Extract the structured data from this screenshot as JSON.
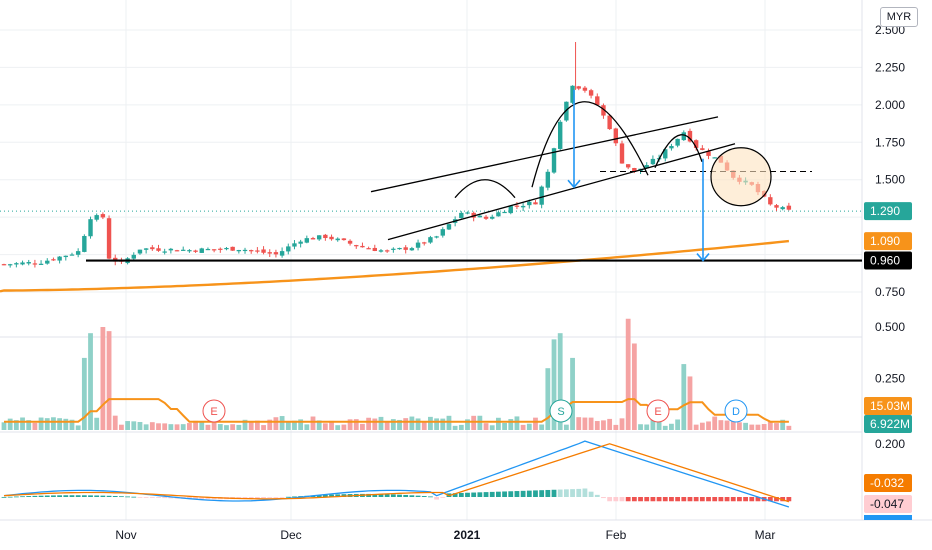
{
  "currency": "MYR",
  "colors": {
    "up": "#26a69a",
    "down": "#ef5350",
    "ma": "#f7931a",
    "macd": "#2196f3",
    "signal": "#f57c00",
    "drawing": "#000000",
    "arrow": "#2196f3"
  },
  "chart_data": {
    "type": "candlestick",
    "price_axis": {
      "ticks": [
        "2.500",
        "2.250",
        "2.000",
        "1.750",
        "1.500",
        "0.750"
      ],
      "tick_values": [
        2.5,
        2.25,
        2.0,
        1.75,
        1.5,
        0.75
      ]
    },
    "volume_axis": {
      "ticks": [
        "0.500",
        "0.250"
      ],
      "tick_values": [
        0.5,
        0.25
      ]
    },
    "macd_axis": {
      "ticks": [
        "0.200"
      ],
      "tick_values": [
        0.2
      ]
    },
    "x_ticks": [
      {
        "label": "Nov",
        "strong": false
      },
      {
        "label": "Dec",
        "strong": false
      },
      {
        "label": "2021",
        "strong": true
      },
      {
        "label": "Feb",
        "strong": false
      },
      {
        "label": "Mar",
        "strong": false
      }
    ],
    "price_tags": [
      {
        "label": "1.290",
        "value": 1.29,
        "color": "#26a69a"
      },
      {
        "label": "1.090",
        "value": 1.09,
        "color": "#f7931a"
      },
      {
        "label": "0.960",
        "value": 0.96,
        "color": "#000000"
      }
    ],
    "volume_tags": [
      {
        "label": "15.03M",
        "color": "#f7931a"
      },
      {
        "label": "6.922M",
        "color": "#26a69a"
      }
    ],
    "macd_tags": [
      {
        "label": "-0.032",
        "color": "#f57c00"
      },
      {
        "label": "-0.047",
        "color": "#ffcdd2"
      }
    ],
    "events": [
      {
        "label": "E",
        "color": "#ef5350"
      },
      {
        "label": "S",
        "color": "#26a69a"
      },
      {
        "label": "E",
        "color": "#ef5350"
      },
      {
        "label": "D",
        "color": "#2196f3"
      }
    ],
    "support_level": 0.96,
    "resistance_dashed": 1.55
  }
}
